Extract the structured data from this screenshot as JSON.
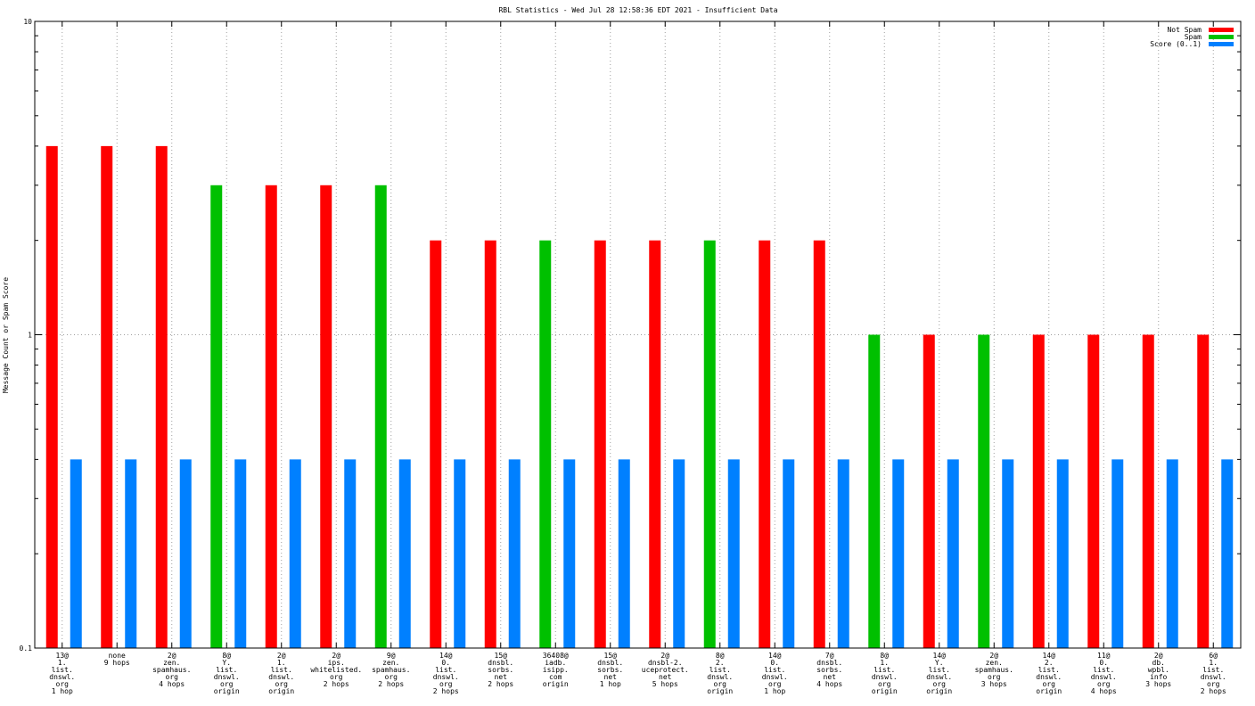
{
  "chart_data": {
    "type": "bar",
    "title": "RBL Statistics - Wed Jul 28 12:58:36 EDT 2021 - Insufficient Data",
    "xlabel": "",
    "ylabel": "Message Count or Spam Score",
    "yscale": "log",
    "ylim": [
      0.1,
      10
    ],
    "yticks": [
      {
        "value": 0.1,
        "label": "0.1"
      },
      {
        "value": 1,
        "label": "1"
      },
      {
        "value": 10,
        "label": "10"
      }
    ],
    "grid": "dotted",
    "legend_position": "top-right",
    "categories": [
      [
        "13@",
        "1.",
        "list.",
        "dnswl.",
        "org",
        "1 hop"
      ],
      [
        "none",
        "9 hops"
      ],
      [
        "2@",
        "zen.",
        "spamhaus.",
        "org",
        "4 hops"
      ],
      [
        "8@",
        "Y.",
        "list.",
        "dnswl.",
        "org",
        "origin"
      ],
      [
        "2@",
        "1.",
        "list.",
        "dnswl.",
        "org",
        "origin"
      ],
      [
        "2@",
        "ips.",
        "whitelisted.",
        "org",
        "2 hops"
      ],
      [
        "9@",
        "zen.",
        "spamhaus.",
        "org",
        "2 hops"
      ],
      [
        "14@",
        "0.",
        "list.",
        "dnswl.",
        "org",
        "2 hops"
      ],
      [
        "15@",
        "dnsbl.",
        "sorbs.",
        "net",
        "2 hops"
      ],
      [
        "36408@",
        "iadb.",
        "isipp.",
        "com",
        "origin"
      ],
      [
        "15@",
        "dnsbl.",
        "sorbs.",
        "net",
        "1 hop"
      ],
      [
        "2@",
        "dnsbl-2.",
        "uceprotect.",
        "net",
        "5 hops"
      ],
      [
        "8@",
        "2.",
        "list.",
        "dnswl.",
        "org",
        "origin"
      ],
      [
        "14@",
        "0.",
        "list.",
        "dnswl.",
        "org",
        "1 hop"
      ],
      [
        "7@",
        "dnsbl.",
        "sorbs.",
        "net",
        "4 hops"
      ],
      [
        "8@",
        "1.",
        "list.",
        "dnswl.",
        "org",
        "origin"
      ],
      [
        "14@",
        "Y.",
        "list.",
        "dnswl.",
        "org",
        "origin"
      ],
      [
        "2@",
        "zen.",
        "spamhaus.",
        "org",
        "3 hops"
      ],
      [
        "14@",
        "2.",
        "list.",
        "dnswl.",
        "org",
        "origin"
      ],
      [
        "11@",
        "0.",
        "list.",
        "dnswl.",
        "org",
        "4 hops"
      ],
      [
        "2@",
        "db.",
        "wpbl.",
        "info",
        "3 hops"
      ],
      [
        "6@",
        "1.",
        "list.",
        "dnswl.",
        "org",
        "2 hops"
      ]
    ],
    "series": [
      {
        "name": "Not Spam",
        "color": "#ff0000",
        "values": [
          4,
          4,
          4,
          null,
          3,
          3,
          null,
          2,
          2,
          null,
          2,
          2,
          null,
          2,
          2,
          null,
          1,
          null,
          1,
          1,
          1,
          1
        ]
      },
      {
        "name": "Spam",
        "color": "#00c000",
        "values": [
          null,
          null,
          null,
          3,
          null,
          null,
          3,
          null,
          null,
          2,
          null,
          null,
          2,
          null,
          null,
          1,
          null,
          1,
          null,
          null,
          null,
          null
        ]
      },
      {
        "name": "Score (0..1)",
        "color": "#0080ff",
        "values": [
          0.4,
          0.4,
          0.4,
          0.4,
          0.4,
          0.4,
          0.4,
          0.4,
          0.4,
          0.4,
          0.4,
          0.4,
          0.4,
          0.4,
          0.4,
          0.4,
          0.4,
          0.4,
          0.4,
          0.4,
          0.4,
          0.4
        ]
      }
    ]
  }
}
